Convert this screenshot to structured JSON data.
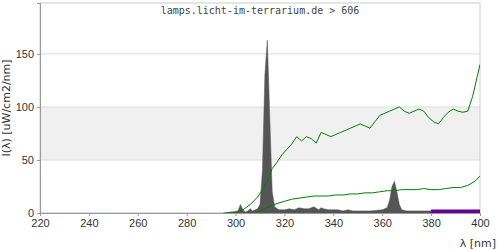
{
  "chart_data": {
    "type": "line",
    "title": "lamps.licht-im-terrarium.de > 606",
    "x_label": "λ [nm]",
    "y_label": "I(λ)  [uW/cm2/nm]",
    "xlim": [
      220,
      400
    ],
    "xticks": [
      220,
      240,
      260,
      280,
      300,
      320,
      340,
      360,
      380,
      400
    ],
    "ylim": [
      0,
      198
    ],
    "yticks": [
      0,
      50,
      100,
      150
    ],
    "grid": true,
    "series": [
      {
        "type": "area",
        "color": "#555555",
        "x": [
          295,
          297,
          298,
          299,
          300,
          301,
          302,
          303,
          304,
          305,
          306,
          307,
          308,
          309,
          310,
          311,
          312,
          313,
          314,
          315,
          316,
          317,
          318,
          320,
          322,
          324,
          326,
          328,
          330,
          332,
          334,
          335,
          336,
          338,
          340,
          342,
          344,
          346,
          348,
          350,
          355,
          360,
          362,
          363,
          364,
          365,
          366,
          367,
          368,
          370,
          375,
          380
        ],
        "values": [
          0,
          0.5,
          1,
          1,
          1,
          2,
          8,
          3,
          1,
          2,
          4,
          2,
          3,
          4,
          8,
          40,
          130,
          163,
          90,
          20,
          6,
          4,
          3,
          3,
          4,
          3,
          5,
          4,
          4,
          6,
          3,
          5,
          4,
          3,
          3,
          3,
          2,
          3,
          2,
          2,
          2,
          3,
          5,
          12,
          25,
          30,
          20,
          8,
          3,
          2,
          2,
          2
        ]
      },
      {
        "type": "area",
        "color": "#660099",
        "x": [
          380,
          385,
          390,
          395,
          400
        ],
        "values": [
          3,
          3,
          3,
          3,
          3
        ]
      },
      {
        "type": "line",
        "color": "#008000",
        "x": [
          296,
          300,
          303,
          306,
          309,
          311,
          313,
          315,
          317,
          319,
          321,
          323,
          325,
          327,
          329,
          331,
          333,
          335,
          337,
          339,
          341,
          343,
          345,
          347,
          349,
          351,
          353,
          355,
          357,
          359,
          361,
          363,
          365,
          367,
          369,
          371,
          373,
          375,
          377,
          379,
          381,
          383,
          385,
          387,
          389,
          391,
          393,
          395,
          397,
          399,
          400
        ],
        "values": [
          0,
          1,
          3,
          8,
          15,
          22,
          30,
          42,
          48,
          55,
          60,
          65,
          72,
          68,
          72,
          70,
          66,
          76,
          74,
          72,
          74,
          76,
          78,
          80,
          82,
          84,
          82,
          80,
          86,
          92,
          94,
          96,
          98,
          100,
          96,
          94,
          96,
          98,
          96,
          90,
          86,
          84,
          90,
          95,
          98,
          96,
          95,
          96,
          110,
          130,
          140
        ]
      },
      {
        "type": "line",
        "color": "#008000",
        "x": [
          308,
          311,
          314,
          317,
          320,
          323,
          326,
          329,
          332,
          335,
          338,
          341,
          344,
          347,
          350,
          353,
          356,
          359,
          362,
          365,
          368,
          371,
          374,
          377,
          380,
          383,
          386,
          389,
          392,
          395,
          398,
          400
        ],
        "values": [
          0,
          3,
          6,
          9,
          11,
          13,
          14,
          15,
          16,
          16,
          16,
          17,
          17,
          18,
          18,
          19,
          19,
          20,
          21,
          21,
          22,
          22,
          22,
          23,
          22,
          22,
          23,
          24,
          24,
          26,
          30,
          35
        ]
      }
    ]
  }
}
